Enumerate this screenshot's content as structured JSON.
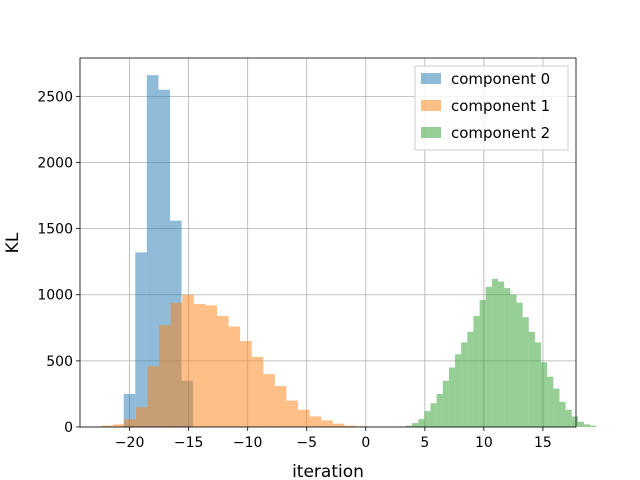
{
  "chart_data": {
    "type": "bar",
    "subtype": "overlapping-histogram",
    "title": "",
    "xlabel": "iteration",
    "ylabel": "KL",
    "xlim": [
      -24.2,
      17.8
    ],
    "ylim": [
      0,
      2790
    ],
    "xticks": [
      -20,
      -15,
      -10,
      -5,
      0,
      5,
      10,
      15
    ],
    "yticks": [
      0,
      500,
      1000,
      1500,
      2000,
      2500
    ],
    "grid": true,
    "legend_position": "top-right",
    "bar_alpha": 0.5,
    "series": [
      {
        "name": "component 0",
        "color": "#1f77b4",
        "bin_start": -20.5,
        "bin_width": 0.98,
        "counts": [
          250,
          1320,
          2660,
          2550,
          1560,
          350
        ]
      },
      {
        "name": "component 1",
        "color": "#ff7f0e",
        "bin_start": -22.4,
        "bin_width": 0.98,
        "counts": [
          10,
          20,
          60,
          150,
          460,
          770,
          940,
          1000,
          930,
          920,
          840,
          760,
          650,
          530,
          400,
          310,
          200,
          130,
          80,
          50,
          25,
          10,
          5
        ]
      },
      {
        "name": "component 2",
        "color": "#2ca02c",
        "bin_start": 3.4,
        "bin_width": 0.52,
        "counts": [
          10,
          30,
          60,
          120,
          180,
          250,
          350,
          450,
          550,
          640,
          720,
          840,
          960,
          1060,
          1120,
          1100,
          1050,
          1000,
          940,
          830,
          720,
          640,
          490,
          380,
          290,
          190,
          130,
          80,
          40,
          20,
          10
        ]
      }
    ]
  }
}
